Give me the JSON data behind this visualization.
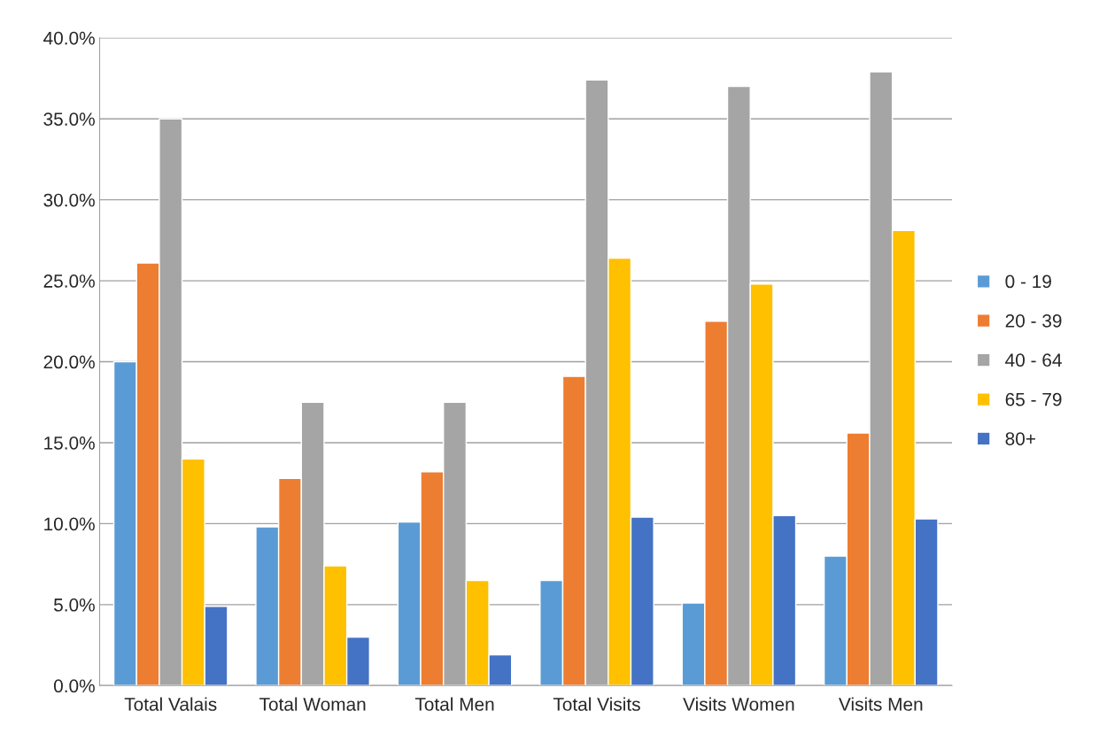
{
  "chart_data": {
    "type": "bar",
    "categories": [
      "Total Valais",
      "Total Woman",
      "Total Men",
      "Total Visits",
      "Visits Women",
      "Visits Men"
    ],
    "series": [
      {
        "name": "0 - 19",
        "color": "#5b9bd5",
        "values": [
          20.0,
          9.8,
          10.1,
          6.5,
          5.1,
          8.0
        ]
      },
      {
        "name": "20 - 39",
        "color": "#ed7d31",
        "values": [
          26.1,
          12.8,
          13.2,
          19.1,
          22.5,
          15.6
        ]
      },
      {
        "name": "40 - 64",
        "color": "#a5a5a5",
        "values": [
          35.0,
          17.5,
          17.5,
          37.4,
          37.0,
          37.9
        ]
      },
      {
        "name": "65 - 79",
        "color": "#ffc000",
        "values": [
          14.0,
          7.4,
          6.5,
          26.4,
          24.8,
          28.1
        ]
      },
      {
        "name": "80+",
        "color": "#4472c4",
        "values": [
          4.9,
          3.0,
          1.9,
          10.4,
          10.5,
          10.3
        ]
      }
    ],
    "ylim": [
      0,
      40
    ],
    "yticks": [
      {
        "value": 0,
        "label": "0.0%"
      },
      {
        "value": 5,
        "label": "5.0%"
      },
      {
        "value": 10,
        "label": "10.0%"
      },
      {
        "value": 15,
        "label": "15.0%"
      },
      {
        "value": 20,
        "label": "20.0%"
      },
      {
        "value": 25,
        "label": "25.0%"
      },
      {
        "value": 30,
        "label": "30.0%"
      },
      {
        "value": 35,
        "label": "35.0%"
      },
      {
        "value": 40,
        "label": "40.0%"
      }
    ],
    "grid": "y",
    "legend": "right"
  }
}
